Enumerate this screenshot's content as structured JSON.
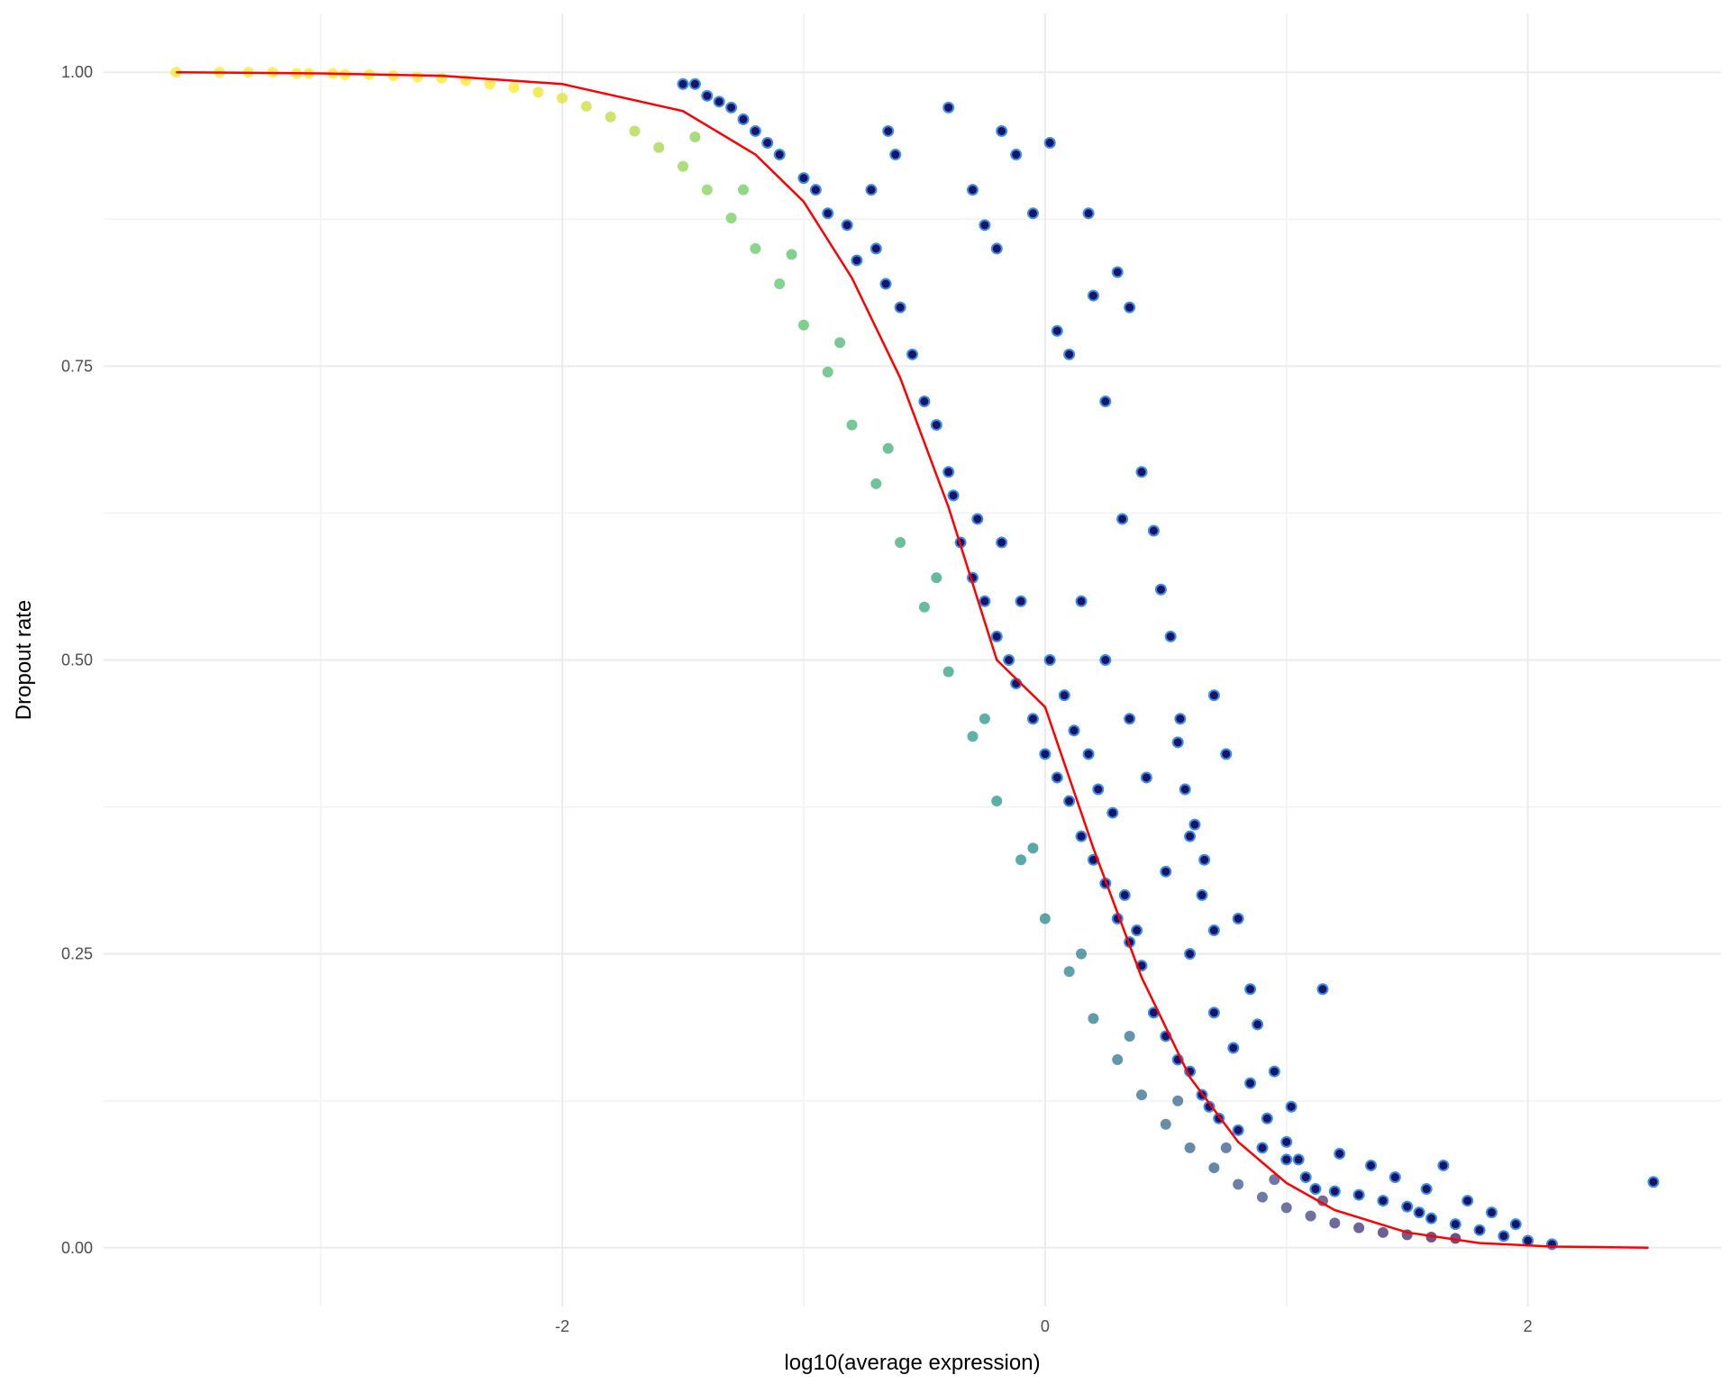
{
  "chart_data": {
    "type": "scatter",
    "title": "",
    "xlabel": "log10(average expression)",
    "ylabel": "Dropout rate",
    "xlim": [
      -3.9,
      2.8
    ],
    "ylim": [
      -0.05,
      1.05
    ],
    "x_ticks": [
      -2,
      0,
      2
    ],
    "x_tick_labels": [
      "-2",
      "0",
      "2"
    ],
    "y_ticks": [
      0,
      0.25,
      0.5,
      0.75,
      1
    ],
    "y_tick_labels": [
      "0.00",
      "0.25",
      "0.50",
      "0.75",
      "1.00"
    ],
    "grid": true,
    "legend": "none",
    "fit_curve": {
      "description": "logistic fit",
      "color": "#ff0000",
      "x": [
        -3.6,
        -3.0,
        -2.5,
        -2.0,
        -1.5,
        -1.2,
        -1.0,
        -0.8,
        -0.6,
        -0.4,
        -0.2,
        0.0,
        0.2,
        0.4,
        0.6,
        0.8,
        1.0,
        1.2,
        1.5,
        1.8,
        2.1,
        2.5
      ],
      "y": [
        1.0,
        0.999,
        0.997,
        0.99,
        0.967,
        0.93,
        0.89,
        0.825,
        0.74,
        0.63,
        0.5,
        0.46,
        0.34,
        0.23,
        0.145,
        0.09,
        0.055,
        0.032,
        0.013,
        0.004,
        0.001,
        0.0
      ]
    },
    "series": [
      {
        "role": "background-points",
        "color_scale": [
          "#fde725",
          "#5ec962",
          "#21918c",
          "#3b528b",
          "#440154"
        ],
        "x": [
          -3.6,
          -3.42,
          -3.3,
          -3.2,
          -3.1,
          -3.05,
          -2.95,
          -2.9,
          -2.8,
          -2.7,
          -2.6,
          -2.5,
          -2.4,
          -2.3,
          -2.2,
          -2.1,
          -2.0,
          -1.9,
          -1.8,
          -1.7,
          -1.6,
          -1.5,
          -1.4,
          -1.3,
          -1.2,
          -1.1,
          -1.0,
          -0.9,
          -0.8,
          -0.7,
          -0.6,
          -0.5,
          -0.4,
          -0.3,
          -0.2,
          -0.1,
          0.0,
          0.1,
          0.2,
          0.3,
          0.4,
          0.5,
          0.6,
          0.7,
          0.8,
          0.9,
          1.0,
          1.1,
          1.2,
          1.3,
          1.4,
          1.5,
          1.6,
          1.7,
          -1.45,
          -1.25,
          -1.05,
          -0.85,
          -0.65,
          -0.45,
          -0.25,
          -0.05,
          0.15,
          0.35,
          0.55,
          0.75,
          0.95,
          1.15
        ],
        "y": [
          1.0,
          1.0,
          1.0,
          1.0,
          0.999,
          0.999,
          0.999,
          0.998,
          0.998,
          0.997,
          0.996,
          0.995,
          0.993,
          0.99,
          0.987,
          0.983,
          0.978,
          0.971,
          0.962,
          0.95,
          0.936,
          0.92,
          0.9,
          0.876,
          0.85,
          0.82,
          0.785,
          0.745,
          0.7,
          0.65,
          0.6,
          0.545,
          0.49,
          0.435,
          0.38,
          0.33,
          0.28,
          0.235,
          0.195,
          0.16,
          0.13,
          0.105,
          0.085,
          0.068,
          0.054,
          0.043,
          0.034,
          0.027,
          0.021,
          0.017,
          0.013,
          0.011,
          0.009,
          0.008,
          0.945,
          0.9,
          0.845,
          0.77,
          0.68,
          0.57,
          0.45,
          0.34,
          0.25,
          0.18,
          0.125,
          0.085,
          0.058,
          0.04
        ]
      },
      {
        "role": "highlighted-points",
        "fill": "#1a1464",
        "stroke": "#3a8ef0",
        "x": [
          -1.5,
          -1.45,
          -1.4,
          -1.35,
          -1.3,
          -1.25,
          -1.2,
          -1.15,
          -1.1,
          -1.0,
          -0.95,
          -0.9,
          -0.82,
          -0.78,
          -0.72,
          -0.7,
          -0.66,
          -0.6,
          -0.55,
          -0.5,
          -0.45,
          -0.4,
          -0.38,
          -0.35,
          -0.3,
          -0.28,
          -0.25,
          -0.2,
          -0.18,
          -0.15,
          -0.12,
          -0.1,
          -0.05,
          0.0,
          0.02,
          0.05,
          0.08,
          0.1,
          0.12,
          0.15,
          0.18,
          0.2,
          0.22,
          0.25,
          0.28,
          0.3,
          0.33,
          0.35,
          0.38,
          0.4,
          0.45,
          0.5,
          0.55,
          0.6,
          0.65,
          0.68,
          0.72,
          0.8,
          0.9,
          1.0,
          1.08,
          1.12,
          1.2,
          1.3,
          1.4,
          1.5,
          1.55,
          1.6,
          1.7,
          1.8,
          1.9,
          2.0,
          2.1,
          2.52,
          -0.65,
          -0.62,
          -0.4,
          -0.18,
          0.02,
          -0.12,
          -0.05,
          0.18,
          0.2,
          0.3,
          0.35,
          0.4,
          0.48,
          0.55,
          0.58,
          0.6,
          0.65,
          0.7,
          0.75,
          0.8,
          0.85,
          -0.3,
          -0.25,
          -0.2,
          0.05,
          0.1,
          0.25,
          0.32,
          0.45,
          0.52,
          0.56,
          0.62,
          0.66,
          0.7,
          0.88,
          0.95,
          1.02,
          1.15,
          1.22,
          1.35,
          1.45,
          1.58,
          1.65,
          1.75,
          1.85,
          1.95,
          0.15,
          0.25,
          0.35,
          0.42,
          0.5,
          0.6,
          0.7,
          0.78,
          0.85,
          0.92,
          1.0,
          1.05
        ],
        "y": [
          0.99,
          0.99,
          0.98,
          0.975,
          0.97,
          0.96,
          0.95,
          0.94,
          0.93,
          0.91,
          0.9,
          0.88,
          0.87,
          0.84,
          0.9,
          0.85,
          0.82,
          0.8,
          0.76,
          0.72,
          0.7,
          0.66,
          0.64,
          0.6,
          0.57,
          0.62,
          0.55,
          0.52,
          0.6,
          0.5,
          0.48,
          0.55,
          0.45,
          0.42,
          0.5,
          0.4,
          0.47,
          0.38,
          0.44,
          0.35,
          0.42,
          0.33,
          0.39,
          0.31,
          0.37,
          0.28,
          0.3,
          0.26,
          0.27,
          0.24,
          0.2,
          0.18,
          0.16,
          0.15,
          0.13,
          0.12,
          0.11,
          0.1,
          0.085,
          0.075,
          0.06,
          0.05,
          0.048,
          0.045,
          0.04,
          0.035,
          0.03,
          0.025,
          0.02,
          0.015,
          0.01,
          0.006,
          0.003,
          0.056,
          0.95,
          0.93,
          0.97,
          0.95,
          0.94,
          0.93,
          0.88,
          0.88,
          0.81,
          0.83,
          0.8,
          0.66,
          0.56,
          0.43,
          0.39,
          0.35,
          0.3,
          0.47,
          0.42,
          0.28,
          0.22,
          0.9,
          0.87,
          0.85,
          0.78,
          0.76,
          0.72,
          0.62,
          0.61,
          0.52,
          0.45,
          0.36,
          0.33,
          0.27,
          0.19,
          0.15,
          0.12,
          0.22,
          0.08,
          0.07,
          0.06,
          0.05,
          0.07,
          0.04,
          0.03,
          0.02,
          0.55,
          0.5,
          0.45,
          0.4,
          0.32,
          0.25,
          0.2,
          0.17,
          0.14,
          0.11,
          0.09,
          0.075
        ]
      }
    ]
  }
}
